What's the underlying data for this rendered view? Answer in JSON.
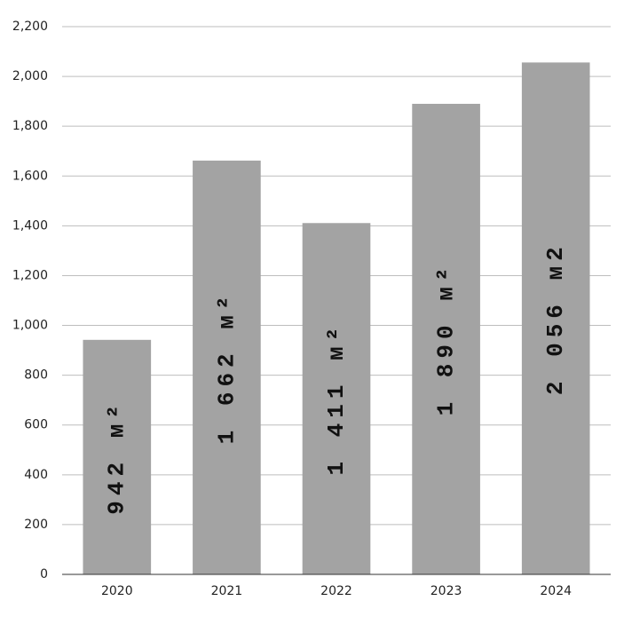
{
  "chart_data": {
    "type": "bar",
    "categories": [
      "2020",
      "2021",
      "2022",
      "2023",
      "2024"
    ],
    "values": [
      942,
      1662,
      1411,
      1890,
      2056
    ],
    "value_labels": [
      "942 м²",
      "1 662 м²",
      "1 411 м²",
      "1 890 м²",
      "2 056 м2"
    ],
    "color": "#a3a3a3",
    "ylim": [
      0,
      2200
    ],
    "yticks": [
      0,
      200,
      400,
      600,
      800,
      {
        "value": 1000,
        "label": "1,000"
      },
      {
        "value": 1200,
        "label": "1,200"
      },
      {
        "value": 1400,
        "label": "1,400"
      },
      {
        "value": 1600,
        "label": "1,600"
      },
      {
        "value": 1800,
        "label": "1,800"
      },
      {
        "value": 2000,
        "label": "2,000"
      },
      {
        "value": 2200,
        "label": "2,200"
      }
    ],
    "grid": true
  }
}
